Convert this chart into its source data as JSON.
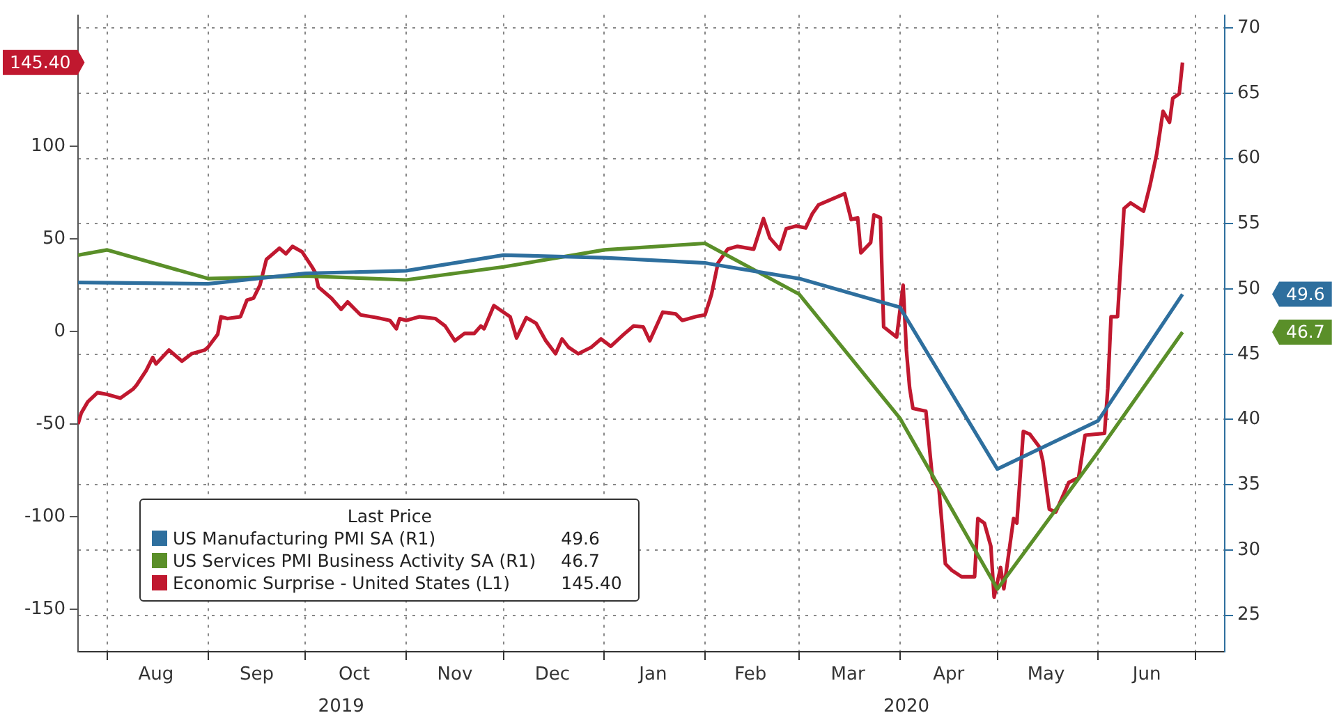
{
  "chart_data": {
    "type": "line",
    "legend": "bottom left",
    "legend_title": "Last Price",
    "grid": true,
    "marker": "none",
    "xlim": [
      "2019-07-23",
      "2020-07-10"
    ],
    "xticks": [
      {
        "value": "2019-08-01",
        "label": null
      },
      {
        "value": "2019-08-16",
        "label": "Aug"
      },
      {
        "value": "2019-09-01",
        "label": null
      },
      {
        "value": "2019-09-16",
        "label": "Sep"
      },
      {
        "value": "2019-10-01",
        "label": null
      },
      {
        "value": "2019-10-16",
        "label": "Oct"
      },
      {
        "value": "2019-11-01",
        "label": null
      },
      {
        "value": "2019-11-16",
        "label": "Nov"
      },
      {
        "value": "2019-12-01",
        "label": null
      },
      {
        "value": "2019-12-16",
        "label": "Dec"
      },
      {
        "value": "2020-01-01",
        "label": null
      },
      {
        "value": "2020-01-16",
        "label": "Jan"
      },
      {
        "value": "2020-02-01",
        "label": null
      },
      {
        "value": "2020-02-15",
        "label": "Feb"
      },
      {
        "value": "2020-03-01",
        "label": null
      },
      {
        "value": "2020-03-16",
        "label": "Mar"
      },
      {
        "value": "2020-04-01",
        "label": null
      },
      {
        "value": "2020-04-16",
        "label": "Apr"
      },
      {
        "value": "2020-05-01",
        "label": null
      },
      {
        "value": "2020-05-16",
        "label": "May"
      },
      {
        "value": "2020-06-01",
        "label": null
      },
      {
        "value": "2020-06-16",
        "label": "Jun"
      },
      {
        "value": "2020-07-01",
        "label": null
      }
    ],
    "x2lim": [
      "2019-07-23",
      "2020-07-10"
    ],
    "x2ticks": [
      {
        "value": "2019-10-12",
        "label": "2019"
      },
      {
        "value": "2020-04-03",
        "label": "2020"
      }
    ],
    "ylim": [
      -173,
      171
    ],
    "yticks": [
      -150,
      -100,
      -50,
      0,
      50,
      100
    ],
    "y2lim": [
      22.2,
      71
    ],
    "y2ticks": [
      25,
      30,
      35,
      40,
      45,
      50,
      55,
      60,
      65,
      70
    ],
    "annotations": [
      "49.6",
      "46.7",
      "145.40"
    ],
    "series": [
      {
        "name": "US Manufacturing PMI SA  (R1)",
        "color": "#2e6f9e",
        "axis": "y2",
        "x": [
          "2019-07-23",
          "2019-09-01",
          "2019-10-01",
          "2019-11-01",
          "2019-12-01",
          "2020-01-01",
          "2020-02-01",
          "2020-03-01",
          "2020-04-01",
          "2020-05-01",
          "2020-06-01",
          "2020-06-27"
        ],
        "values": [
          50.5,
          50.4,
          51.2,
          51.4,
          52.6,
          52.4,
          52.0,
          50.8,
          48.6,
          36.2,
          39.9,
          49.6
        ]
      },
      {
        "name": "US Services PMI Business Activity SA  (R1)",
        "color": "#5a8f29",
        "axis": "y2",
        "x": [
          "2019-07-23",
          "2019-08-01",
          "2019-09-01",
          "2019-10-01",
          "2019-11-01",
          "2019-12-01",
          "2020-01-01",
          "2020-02-01",
          "2020-03-01",
          "2020-04-01",
          "2020-05-01",
          "2020-06-01",
          "2020-06-27"
        ],
        "values": [
          52.6,
          53.0,
          50.8,
          51.0,
          50.7,
          51.7,
          53.0,
          53.5,
          49.6,
          40.1,
          27.0,
          37.5,
          46.7
        ]
      },
      {
        "name": "Economic Surprise - United States  (L1)",
        "color": "#c0182f",
        "axis": "y",
        "x": [
          "2019-07-23",
          "2019-07-24",
          "2019-07-26",
          "2019-07-29",
          "2019-08-01",
          "2019-08-05",
          "2019-08-09",
          "2019-08-10",
          "2019-08-13",
          "2019-08-15",
          "2019-08-16",
          "2019-08-20",
          "2019-08-24",
          "2019-08-27",
          "2019-08-31",
          "2019-09-01",
          "2019-09-04",
          "2019-09-05",
          "2019-09-07",
          "2019-09-11",
          "2019-09-13",
          "2019-09-15",
          "2019-09-17",
          "2019-09-19",
          "2019-09-21",
          "2019-09-23",
          "2019-09-25",
          "2019-09-27",
          "2019-09-30",
          "2019-10-03",
          "2019-10-04",
          "2019-10-05",
          "2019-10-09",
          "2019-10-12",
          "2019-10-14",
          "2019-10-18",
          "2019-10-23",
          "2019-10-27",
          "2019-10-29",
          "2019-10-30",
          "2019-11-01",
          "2019-11-05",
          "2019-11-10",
          "2019-11-13",
          "2019-11-16",
          "2019-11-19",
          "2019-11-22",
          "2019-11-24",
          "2019-11-25",
          "2019-11-28",
          "2019-12-03",
          "2019-12-05",
          "2019-12-08",
          "2019-12-11",
          "2019-12-14",
          "2019-12-17",
          "2019-12-19",
          "2019-12-21",
          "2019-12-24",
          "2019-12-28",
          "2019-12-31",
          "2020-01-03",
          "2020-01-07",
          "2020-01-10",
          "2020-01-13",
          "2020-01-15",
          "2020-01-19",
          "2020-01-23",
          "2020-01-25",
          "2020-01-29",
          "2020-02-01",
          "2020-02-03",
          "2020-02-05",
          "2020-02-08",
          "2020-02-11",
          "2020-02-16",
          "2020-02-19",
          "2020-02-21",
          "2020-02-24",
          "2020-02-26",
          "2020-02-29",
          "2020-03-03",
          "2020-03-05",
          "2020-03-07",
          "2020-03-11",
          "2020-03-15",
          "2020-03-17",
          "2020-03-19",
          "2020-03-20",
          "2020-03-23",
          "2020-03-24",
          "2020-03-26",
          "2020-03-27",
          "2020-03-31",
          "2020-04-02",
          "2020-04-03",
          "2020-04-04",
          "2020-04-05",
          "2020-04-09",
          "2020-04-11",
          "2020-04-13",
          "2020-04-15",
          "2020-04-17",
          "2020-04-20",
          "2020-04-24",
          "2020-04-25",
          "2020-04-27",
          "2020-04-29",
          "2020-04-30",
          "2020-05-02",
          "2020-05-03",
          "2020-05-06",
          "2020-05-07",
          "2020-05-09",
          "2020-05-11",
          "2020-05-14",
          "2020-05-15",
          "2020-05-17",
          "2020-05-19",
          "2020-05-23",
          "2020-05-26",
          "2020-05-28",
          "2020-06-03",
          "2020-06-04",
          "2020-06-05",
          "2020-06-07",
          "2020-06-09",
          "2020-06-11",
          "2020-06-15",
          "2020-06-17",
          "2020-06-19",
          "2020-06-21",
          "2020-06-23",
          "2020-06-24",
          "2020-06-26",
          "2020-06-27"
        ],
        "values": [
          -50,
          -44,
          -38,
          -33,
          -34,
          -36,
          -31,
          -29,
          -21,
          -14,
          -17.5,
          -10,
          -16,
          -12,
          -10,
          -8.5,
          -1.5,
          8,
          7,
          8,
          17,
          18,
          25,
          39,
          42,
          45,
          42,
          46,
          43,
          35,
          32,
          24,
          18,
          12,
          16,
          9,
          7.5,
          6,
          1.5,
          7,
          6,
          8,
          7,
          3,
          -5,
          -1,
          -1,
          3,
          1.5,
          14,
          8,
          -3.5,
          7.5,
          4.5,
          -5,
          -12,
          -4,
          -8.5,
          -12,
          -8.5,
          -4,
          -8,
          -1.5,
          3,
          2.5,
          -5,
          10.5,
          9.5,
          6,
          8,
          9,
          20,
          37,
          44.5,
          46,
          44.5,
          61,
          50.5,
          44.5,
          55.5,
          57,
          56,
          63.5,
          68.5,
          71.5,
          74.5,
          60.5,
          61.5,
          42.5,
          48,
          63,
          61.5,
          2.5,
          -3,
          25,
          -10,
          -30.5,
          -41.5,
          -43,
          -79,
          -84.5,
          -125.5,
          -129,
          -132.5,
          -132.5,
          -101,
          -103.5,
          -116,
          -143.5,
          -127.5,
          -139,
          -101,
          -103.5,
          -54,
          -55.5,
          -62.5,
          -70,
          -96,
          -97.5,
          -81.5,
          -79,
          -56,
          -55,
          -30.5,
          8,
          8,
          66.5,
          69.5,
          65,
          79,
          95.5,
          119,
          113,
          126,
          128.5,
          145.4
        ]
      }
    ]
  }
}
